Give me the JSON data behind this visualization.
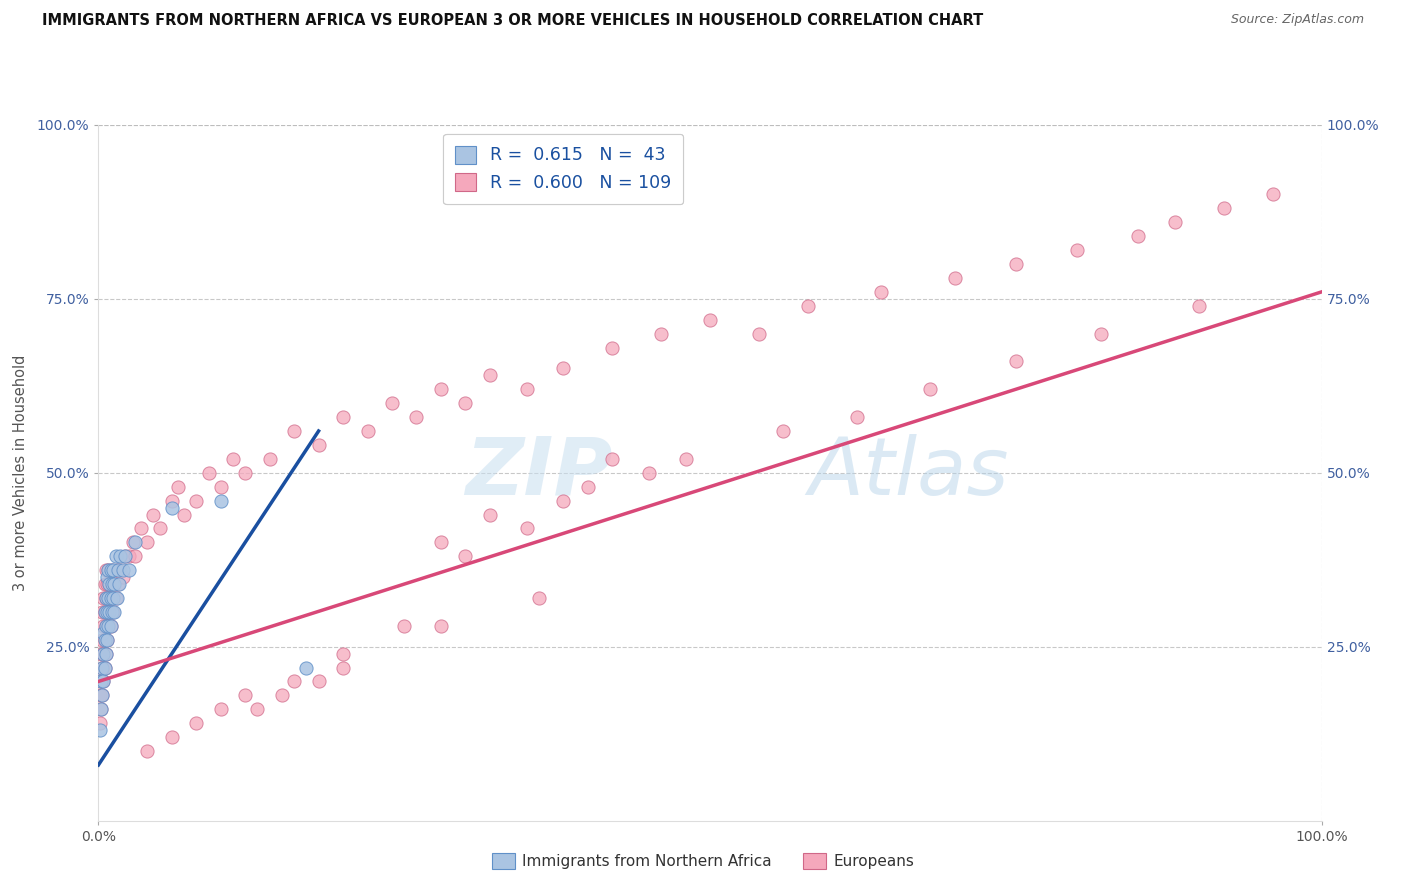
{
  "title": "IMMIGRANTS FROM NORTHERN AFRICA VS EUROPEAN 3 OR MORE VEHICLES IN HOUSEHOLD CORRELATION CHART",
  "source": "Source: ZipAtlas.com",
  "ylabel": "3 or more Vehicles in Household",
  "xlim": [
    0,
    1.0
  ],
  "ylim": [
    0,
    1.0
  ],
  "legend_blue_R": "0.615",
  "legend_blue_N": "43",
  "legend_pink_R": "0.600",
  "legend_pink_N": "109",
  "blue_color": "#aac4e2",
  "blue_edge": "#6090c8",
  "pink_color": "#f5a8bc",
  "pink_edge": "#d06888",
  "blue_line_color": "#1a4fa0",
  "pink_line_color": "#d84878",
  "grid_color": "#bbbbbb",
  "tick_color": "#4060a0",
  "blue_scatter_x": [
    0.001,
    0.002,
    0.002,
    0.003,
    0.003,
    0.004,
    0.004,
    0.004,
    0.005,
    0.005,
    0.005,
    0.006,
    0.006,
    0.006,
    0.007,
    0.007,
    0.007,
    0.008,
    0.008,
    0.008,
    0.009,
    0.009,
    0.01,
    0.01,
    0.01,
    0.011,
    0.011,
    0.012,
    0.012,
    0.013,
    0.013,
    0.014,
    0.015,
    0.016,
    0.017,
    0.018,
    0.02,
    0.022,
    0.025,
    0.03,
    0.06,
    0.1,
    0.17
  ],
  "blue_scatter_y": [
    0.13,
    0.16,
    0.2,
    0.18,
    0.22,
    0.2,
    0.24,
    0.27,
    0.22,
    0.26,
    0.3,
    0.24,
    0.28,
    0.32,
    0.26,
    0.3,
    0.35,
    0.28,
    0.32,
    0.36,
    0.3,
    0.34,
    0.28,
    0.32,
    0.36,
    0.3,
    0.34,
    0.32,
    0.36,
    0.3,
    0.34,
    0.38,
    0.32,
    0.36,
    0.34,
    0.38,
    0.36,
    0.38,
    0.36,
    0.4,
    0.45,
    0.46,
    0.22
  ],
  "pink_scatter_x": [
    0.001,
    0.001,
    0.002,
    0.002,
    0.002,
    0.003,
    0.003,
    0.003,
    0.003,
    0.004,
    0.004,
    0.004,
    0.004,
    0.005,
    0.005,
    0.005,
    0.005,
    0.006,
    0.006,
    0.006,
    0.006,
    0.007,
    0.007,
    0.007,
    0.008,
    0.008,
    0.008,
    0.009,
    0.009,
    0.01,
    0.01,
    0.011,
    0.012,
    0.013,
    0.014,
    0.015,
    0.016,
    0.018,
    0.02,
    0.022,
    0.025,
    0.028,
    0.03,
    0.035,
    0.04,
    0.045,
    0.05,
    0.06,
    0.065,
    0.07,
    0.08,
    0.09,
    0.1,
    0.11,
    0.12,
    0.14,
    0.16,
    0.18,
    0.2,
    0.22,
    0.24,
    0.26,
    0.28,
    0.3,
    0.32,
    0.35,
    0.38,
    0.42,
    0.46,
    0.5,
    0.54,
    0.58,
    0.64,
    0.7,
    0.75,
    0.8,
    0.85,
    0.88,
    0.92,
    0.96,
    0.2,
    0.15,
    0.25,
    0.18,
    0.13,
    0.35,
    0.4,
    0.45,
    0.3,
    0.28,
    0.32,
    0.38,
    0.42,
    0.48,
    0.56,
    0.62,
    0.68,
    0.75,
    0.82,
    0.9,
    0.04,
    0.06,
    0.08,
    0.1,
    0.12,
    0.16,
    0.2,
    0.28,
    0.36
  ],
  "pink_scatter_y": [
    0.14,
    0.18,
    0.16,
    0.2,
    0.24,
    0.18,
    0.22,
    0.26,
    0.3,
    0.2,
    0.24,
    0.28,
    0.32,
    0.22,
    0.26,
    0.3,
    0.34,
    0.24,
    0.28,
    0.32,
    0.36,
    0.26,
    0.3,
    0.34,
    0.28,
    0.32,
    0.36,
    0.3,
    0.34,
    0.28,
    0.32,
    0.36,
    0.3,
    0.34,
    0.32,
    0.36,
    0.34,
    0.36,
    0.35,
    0.38,
    0.38,
    0.4,
    0.38,
    0.42,
    0.4,
    0.44,
    0.42,
    0.46,
    0.48,
    0.44,
    0.46,
    0.5,
    0.48,
    0.52,
    0.5,
    0.52,
    0.56,
    0.54,
    0.58,
    0.56,
    0.6,
    0.58,
    0.62,
    0.6,
    0.64,
    0.62,
    0.65,
    0.68,
    0.7,
    0.72,
    0.7,
    0.74,
    0.76,
    0.78,
    0.8,
    0.82,
    0.84,
    0.86,
    0.88,
    0.9,
    0.22,
    0.18,
    0.28,
    0.2,
    0.16,
    0.42,
    0.48,
    0.5,
    0.38,
    0.4,
    0.44,
    0.46,
    0.52,
    0.52,
    0.56,
    0.58,
    0.62,
    0.66,
    0.7,
    0.74,
    0.1,
    0.12,
    0.14,
    0.16,
    0.18,
    0.2,
    0.24,
    0.28,
    0.32
  ],
  "blue_line_x": [
    0.0,
    0.18
  ],
  "blue_line_y": [
    0.08,
    0.56
  ],
  "pink_line_x": [
    0.0,
    1.0
  ],
  "pink_line_y": [
    0.2,
    0.76
  ],
  "diag_line_x": [
    0.0,
    1.0
  ],
  "diag_line_y": [
    1.0,
    1.0
  ]
}
